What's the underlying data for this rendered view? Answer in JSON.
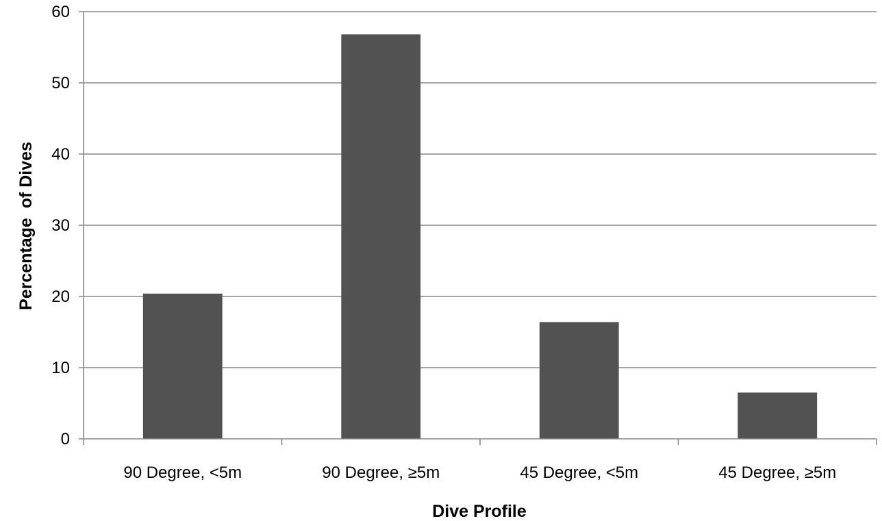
{
  "chart_data": {
    "type": "bar",
    "title": "",
    "xlabel": "Dive Profile",
    "ylabel": "Percentage  of Dives",
    "categories": [
      "90 Degree, <5m",
      "90 Degree, ≥5m",
      "45 Degree, <5m",
      "45 Degree, ≥5m"
    ],
    "values": [
      20.4,
      56.8,
      16.4,
      6.5
    ],
    "ylim": [
      0,
      60
    ],
    "yticks": [
      0,
      10,
      20,
      30,
      40,
      50,
      60
    ],
    "grid": true,
    "legend": "none",
    "bar_color": "#525252",
    "grid_color": "#888888"
  }
}
